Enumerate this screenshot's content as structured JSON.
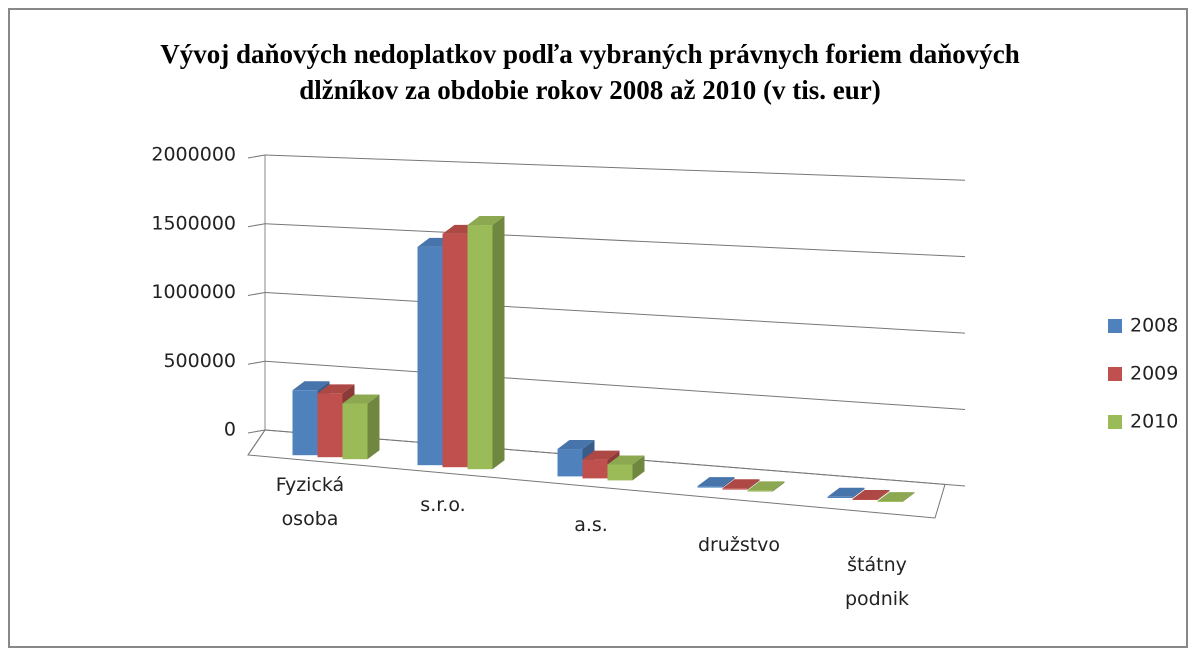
{
  "chart_data": {
    "type": "bar3d",
    "title": "Vývoj  daňových nedoplatkov podľa vybraných právnych foriem daňových dlžníkov za obdobie rokov 2008 až 2010 (v tis. eur)",
    "categories": [
      "Fyzická osoba",
      "s.r.o.",
      "a.s.",
      "družstvo",
      "štátny podnik"
    ],
    "series": [
      {
        "name": "2008",
        "color": "#4f81bd",
        "values": [
          470000,
          1550000,
          190000,
          10000,
          8000
        ]
      },
      {
        "name": "2009",
        "color": "#c0504d",
        "values": [
          460000,
          1650000,
          130000,
          9000,
          7000
        ]
      },
      {
        "name": "2010",
        "color": "#9bbb59",
        "values": [
          400000,
          1720000,
          110000,
          8000,
          6000
        ]
      }
    ],
    "ylim": [
      0,
      2000000
    ],
    "yticks": [
      0,
      500000,
      1000000,
      1500000,
      2000000
    ],
    "grid": true,
    "legend": "right"
  }
}
